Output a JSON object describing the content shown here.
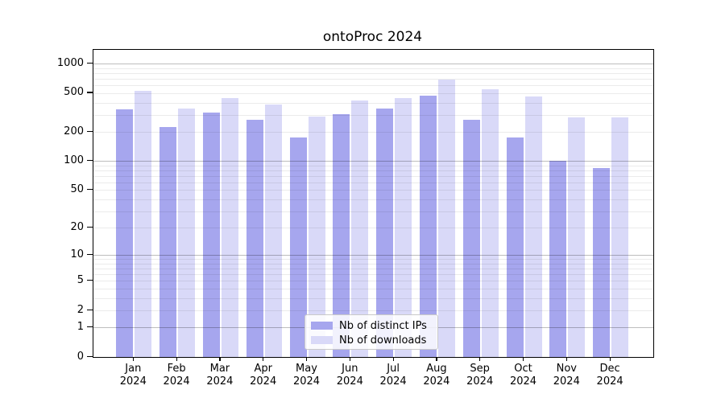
{
  "title": "ontoProc 2024",
  "legend": {
    "items": [
      {
        "label": "Nb of distinct IPs",
        "color": "#a6a6ee"
      },
      {
        "label": "Nb of downloads",
        "color": "#d9d9f8"
      }
    ]
  },
  "chart_data": {
    "type": "bar",
    "title": "ontoProc 2024",
    "categories": [
      "Jan 2024",
      "Feb 2024",
      "Mar 2024",
      "Apr 2024",
      "May 2024",
      "Jun 2024",
      "Jul 2024",
      "Aug 2024",
      "Sep 2024",
      "Oct 2024",
      "Nov 2024",
      "Dec 2024"
    ],
    "month_labels": [
      "Jan",
      "Feb",
      "Mar",
      "Apr",
      "May",
      "Jun",
      "Jul",
      "Aug",
      "Sep",
      "Oct",
      "Nov",
      "Dec"
    ],
    "year_label": "2024",
    "series": [
      {
        "name": "Nb of distinct IPs",
        "color": "#a6a6ee",
        "values": [
          340,
          225,
          315,
          268,
          176,
          306,
          348,
          470,
          266,
          176,
          101,
          84
        ]
      },
      {
        "name": "Nb of downloads",
        "color": "#d9d9f8",
        "values": [
          530,
          346,
          445,
          380,
          285,
          418,
          445,
          685,
          545,
          463,
          280,
          280
        ]
      }
    ],
    "y_axis": {
      "scale": "log1p",
      "ticks": [
        0,
        1,
        2,
        5,
        10,
        20,
        50,
        100,
        200,
        500,
        1000
      ],
      "max": 1388
    },
    "grid": {
      "major": [
        1,
        10,
        100,
        1000
      ],
      "minor": [
        2,
        3,
        4,
        5,
        6,
        7,
        8,
        9,
        20,
        30,
        40,
        50,
        60,
        70,
        80,
        90,
        200,
        300,
        400,
        500,
        600,
        700,
        800,
        900
      ],
      "grid_on": true
    },
    "legend_position": "lower center",
    "xlabel": "",
    "ylabel": ""
  }
}
